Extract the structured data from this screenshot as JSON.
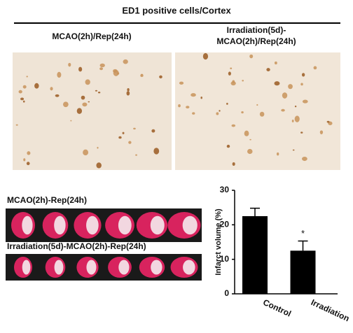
{
  "header": {
    "title": "ED1 positive cells/Cortex"
  },
  "micrographs": [
    {
      "label": [
        "MCAO(2h)/Rep(24h)"
      ]
    },
    {
      "label": [
        "Irradiation(5d)-",
        "MCAO(2h)/Rep(24h)"
      ]
    }
  ],
  "brain_slices": [
    {
      "label": "MCAO(2h)-Rep(24h)"
    },
    {
      "label": "Irradiation(5d)-MCAO(2h)-Rep(24h)"
    }
  ],
  "chart_data": {
    "type": "bar",
    "categories": [
      "Control",
      "Irradiation"
    ],
    "values": [
      22.5,
      12.5
    ],
    "errors": [
      2.3,
      2.8
    ],
    "color": "#000000",
    "ylabel": "Infarct volume (%)",
    "ylim": [
      0,
      30
    ],
    "yticks": [
      0,
      10,
      20,
      30
    ],
    "grid": false,
    "annotation": "*"
  }
}
